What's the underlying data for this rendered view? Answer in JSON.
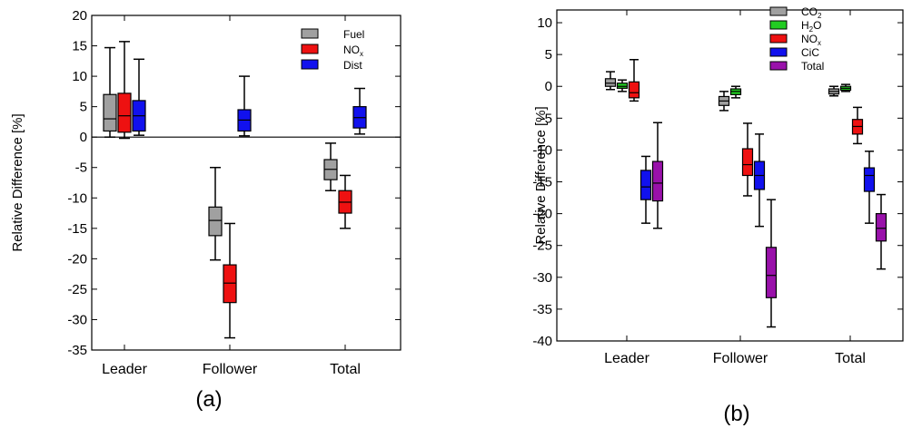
{
  "figure": {
    "panels": [
      {
        "caption": "(a)",
        "chart_index": 0
      },
      {
        "caption": "(b)",
        "chart_index": 1
      }
    ]
  },
  "chart_data": [
    {
      "type": "box",
      "ylabel": "Relative Difference [%]",
      "categories": [
        "Leader",
        "Follower",
        "Total"
      ],
      "ylim": [
        -35,
        20
      ],
      "yticks": [
        20,
        15,
        10,
        5,
        0,
        -5,
        -10,
        -15,
        -20,
        -25,
        -30,
        -35
      ],
      "zero_line": true,
      "legend": {
        "placement": "top-right"
      },
      "series": [
        {
          "name": "Fuel",
          "color": "#a0a0a0",
          "boxes": [
            {
              "category": "Leader",
              "min": 0.0,
              "q1": 1.0,
              "median": 3.0,
              "q3": 7.0,
              "max": 14.7
            },
            {
              "category": "Follower",
              "min": -20.2,
              "q1": -16.2,
              "median": -13.7,
              "q3": -11.5,
              "max": -5.0
            },
            {
              "category": "Total",
              "min": -8.8,
              "q1": -7.0,
              "median": -5.3,
              "q3": -3.7,
              "max": -1.0
            }
          ]
        },
        {
          "name": "NOx",
          "label_main": "NO",
          "label_sub": "x",
          "color": "#ee1111",
          "boxes": [
            {
              "category": "Leader",
              "min": -0.2,
              "q1": 0.8,
              "median": 3.5,
              "q3": 7.2,
              "max": 15.7
            },
            {
              "category": "Follower",
              "min": -33.0,
              "q1": -27.2,
              "median": -24.0,
              "q3": -21.0,
              "max": -14.2
            },
            {
              "category": "Total",
              "min": -15.0,
              "q1": -12.5,
              "median": -10.7,
              "q3": -8.8,
              "max": -6.3
            }
          ]
        },
        {
          "name": "Dist",
          "color": "#1111ee",
          "boxes": [
            {
              "category": "Leader",
              "min": 0.3,
              "q1": 1.0,
              "median": 3.5,
              "q3": 6.0,
              "max": 12.8
            },
            {
              "category": "Follower",
              "min": 0.2,
              "q1": 1.0,
              "median": 2.8,
              "q3": 4.5,
              "max": 10.0
            },
            {
              "category": "Total",
              "min": 0.5,
              "q1": 1.5,
              "median": 3.2,
              "q3": 5.0,
              "max": 8.0
            }
          ]
        }
      ]
    },
    {
      "type": "box",
      "ylabel": "Relative Difference [%]",
      "categories": [
        "Leader",
        "Follower",
        "Total"
      ],
      "ylim": [
        -40,
        12
      ],
      "yticks": [
        10,
        5,
        0,
        -5,
        -10,
        -15,
        -20,
        -25,
        -30,
        -35,
        -40
      ],
      "zero_line": false,
      "legend": {
        "placement": "top-right"
      },
      "series": [
        {
          "name": "CO2",
          "label_main": "CO",
          "label_sub": "2",
          "color": "#a0a0a0",
          "boxes": [
            {
              "category": "Leader",
              "min": -0.5,
              "q1": 0.0,
              "median": 0.5,
              "q3": 1.2,
              "max": 2.3
            },
            {
              "category": "Follower",
              "min": -3.8,
              "q1": -3.0,
              "median": -2.3,
              "q3": -1.6,
              "max": -0.8
            },
            {
              "category": "Total",
              "min": -1.5,
              "q1": -1.2,
              "median": -0.8,
              "q3": -0.4,
              "max": 0.0
            }
          ]
        },
        {
          "name": "H2O",
          "label_main": "H",
          "label_sub": "2",
          "label_tail": "O",
          "color": "#22cc22",
          "boxes": [
            {
              "category": "Leader",
              "min": -0.8,
              "q1": -0.3,
              "median": 0.0,
              "q3": 0.5,
              "max": 1.0
            },
            {
              "category": "Follower",
              "min": -1.8,
              "q1": -1.3,
              "median": -0.8,
              "q3": -0.4,
              "max": 0.0
            },
            {
              "category": "Total",
              "min": -0.8,
              "q1": -0.6,
              "median": -0.3,
              "q3": 0.0,
              "max": 0.3
            }
          ]
        },
        {
          "name": "NOx",
          "label_main": "NO",
          "label_sub": "x",
          "color": "#ee1111",
          "boxes": [
            {
              "category": "Leader",
              "min": -2.3,
              "q1": -1.8,
              "median": -1.0,
              "q3": 0.7,
              "max": 4.2
            },
            {
              "category": "Follower",
              "min": -17.2,
              "q1": -14.0,
              "median": -12.3,
              "q3": -9.8,
              "max": -5.8
            },
            {
              "category": "Total",
              "min": -9.0,
              "q1": -7.5,
              "median": -6.3,
              "q3": -5.2,
              "max": -3.3
            }
          ]
        },
        {
          "name": "CiC",
          "color": "#1111ee",
          "boxes": [
            {
              "category": "Leader",
              "min": -21.5,
              "q1": -17.8,
              "median": -15.8,
              "q3": -13.2,
              "max": -11.0
            },
            {
              "category": "Follower",
              "min": -22.0,
              "q1": -16.2,
              "median": -14.0,
              "q3": -11.8,
              "max": -7.5
            },
            {
              "category": "Total",
              "min": -21.5,
              "q1": -16.5,
              "median": -14.0,
              "q3": -12.8,
              "max": -10.2
            }
          ]
        },
        {
          "name": "Total",
          "color": "#9911aa",
          "boxes": [
            {
              "category": "Leader",
              "min": -22.3,
              "q1": -18.0,
              "median": -15.2,
              "q3": -11.8,
              "max": -5.7
            },
            {
              "category": "Follower",
              "min": -37.8,
              "q1": -33.2,
              "median": -29.7,
              "q3": -25.3,
              "max": -17.8
            },
            {
              "category": "Total",
              "min": -28.7,
              "q1": -24.3,
              "median": -22.3,
              "q3": -20.0,
              "max": -17.0
            }
          ]
        }
      ]
    }
  ]
}
